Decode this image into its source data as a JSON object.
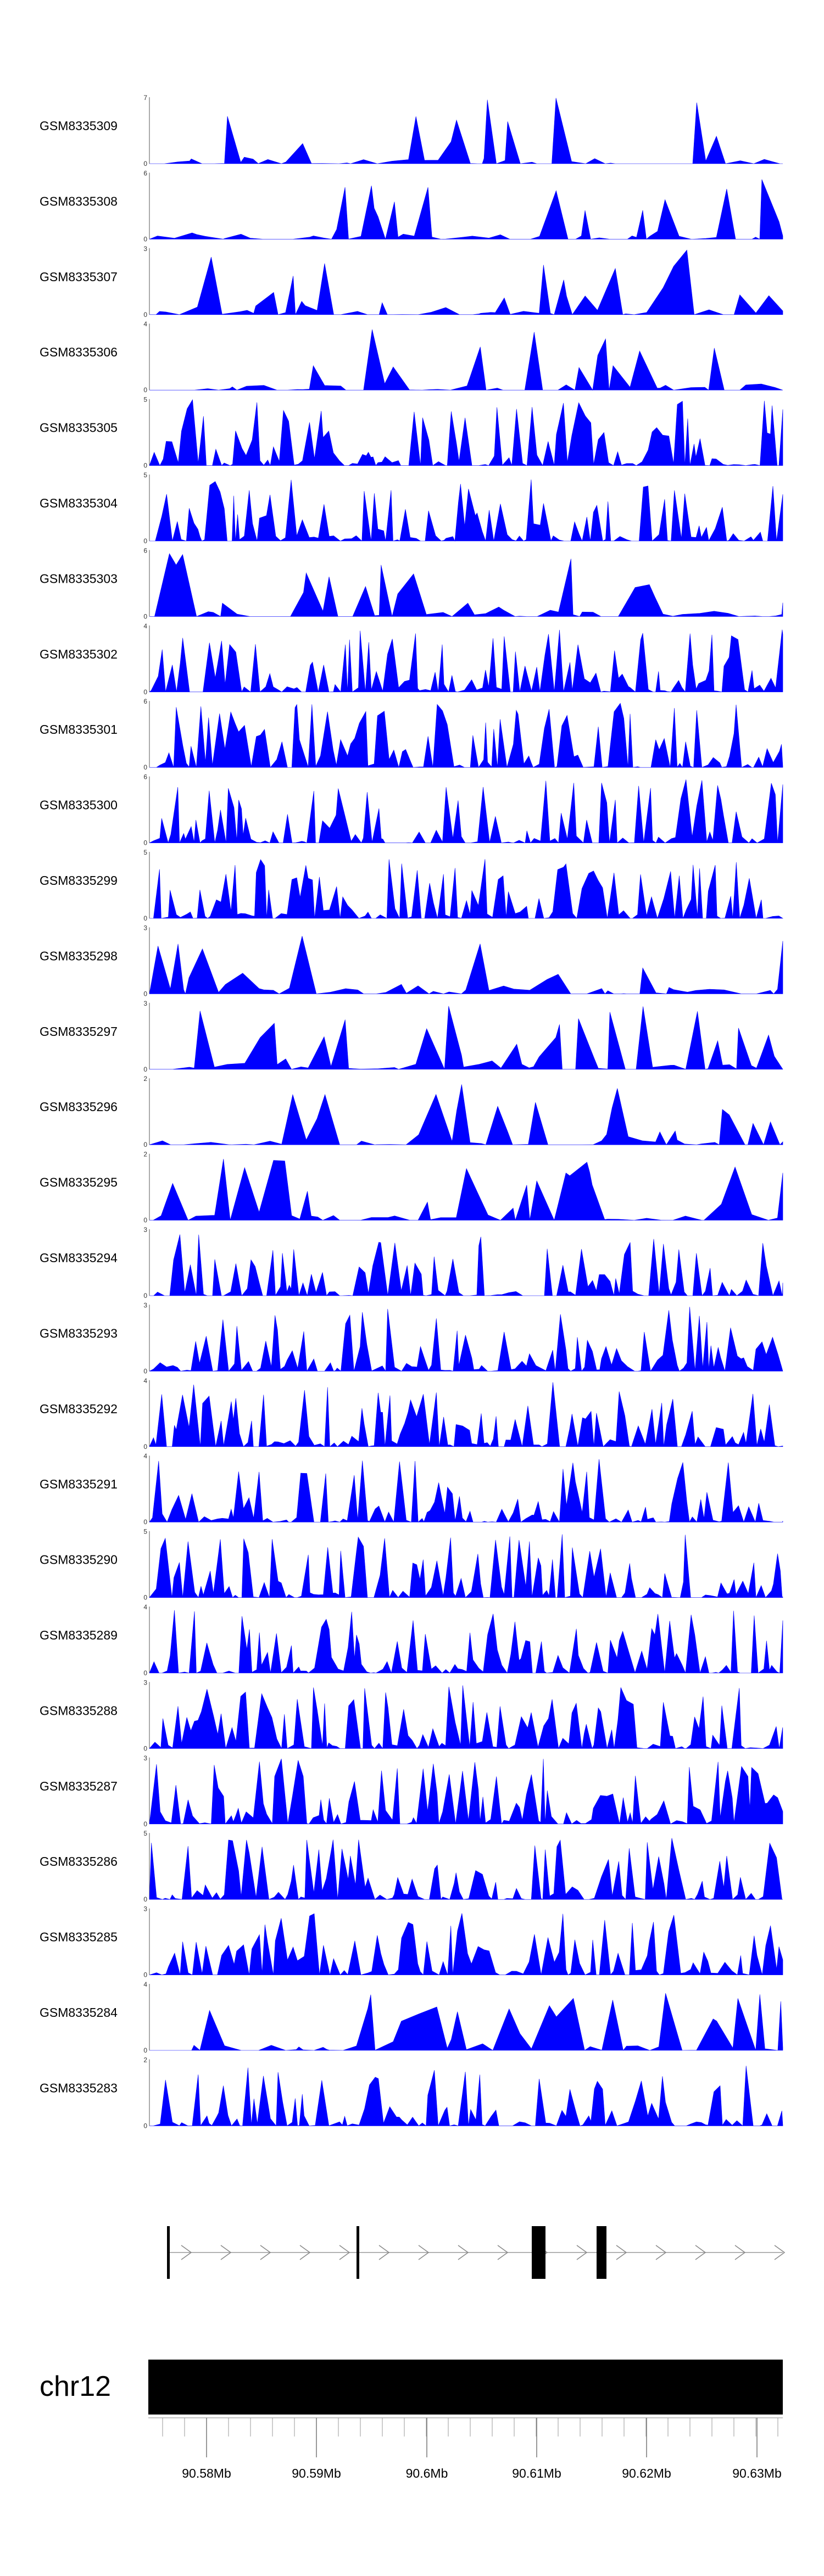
{
  "chart_data": {
    "type": "area",
    "title": "",
    "xlabel": "",
    "ylabel": "",
    "color": "#0000ff",
    "chromosome": "chr12",
    "x_ticks": [
      "90.58Mb",
      "90.59Mb",
      "90.6Mb",
      "90.61Mb",
      "90.62Mb",
      "90.63Mb"
    ],
    "tracks": [
      {
        "name": "GSM8335309",
        "ymin": 0,
        "ymax": 7,
        "seed": 309,
        "density": 0.25
      },
      {
        "name": "GSM8335308",
        "ymin": 0,
        "ymax": 6,
        "seed": 308,
        "density": 0.35
      },
      {
        "name": "GSM8335307",
        "ymin": 0,
        "ymax": 3,
        "seed": 307,
        "density": 0.4
      },
      {
        "name": "GSM8335306",
        "ymin": 0,
        "ymax": 4,
        "seed": 306,
        "density": 0.3
      },
      {
        "name": "GSM8335305",
        "ymin": 0,
        "ymax": 5,
        "seed": 305,
        "density": 0.6
      },
      {
        "name": "GSM8335304",
        "ymin": 0,
        "ymax": 5,
        "seed": 304,
        "density": 0.6
      },
      {
        "name": "GSM8335303",
        "ymin": 0,
        "ymax": 6,
        "seed": 303,
        "density": 0.45
      },
      {
        "name": "GSM8335302",
        "ymin": 0,
        "ymax": 4,
        "seed": 302,
        "density": 0.6
      },
      {
        "name": "GSM8335301",
        "ymin": 0,
        "ymax": 6,
        "seed": 301,
        "density": 0.6
      },
      {
        "name": "GSM8335300",
        "ymin": 0,
        "ymax": 6,
        "seed": 300,
        "density": 0.55
      },
      {
        "name": "GSM8335299",
        "ymin": 0,
        "ymax": 5,
        "seed": 299,
        "density": 0.6
      },
      {
        "name": "GSM8335298",
        "ymin": 0,
        "ymax": 3,
        "seed": 298,
        "density": 0.35
      },
      {
        "name": "GSM8335297",
        "ymin": 0,
        "ymax": 3,
        "seed": 297,
        "density": 0.45
      },
      {
        "name": "GSM8335296",
        "ymin": 0,
        "ymax": 2,
        "seed": 296,
        "density": 0.35
      },
      {
        "name": "GSM8335295",
        "ymin": 0,
        "ymax": 2,
        "seed": 295,
        "density": 0.5
      },
      {
        "name": "GSM8335294",
        "ymin": 0,
        "ymax": 3,
        "seed": 294,
        "density": 0.6
      },
      {
        "name": "GSM8335293",
        "ymin": 0,
        "ymax": 3,
        "seed": 293,
        "density": 0.6
      },
      {
        "name": "GSM8335292",
        "ymin": 0,
        "ymax": 4,
        "seed": 292,
        "density": 0.6
      },
      {
        "name": "GSM8335291",
        "ymin": 0,
        "ymax": 4,
        "seed": 291,
        "density": 0.6
      },
      {
        "name": "GSM8335290",
        "ymin": 0,
        "ymax": 5,
        "seed": 290,
        "density": 0.65
      },
      {
        "name": "GSM8335289",
        "ymin": 0,
        "ymax": 4,
        "seed": 289,
        "density": 0.65
      },
      {
        "name": "GSM8335288",
        "ymin": 0,
        "ymax": 3,
        "seed": 288,
        "density": 0.65
      },
      {
        "name": "GSM8335287",
        "ymin": 0,
        "ymax": 3,
        "seed": 287,
        "density": 0.7
      },
      {
        "name": "GSM8335286",
        "ymin": 0,
        "ymax": 5,
        "seed": 286,
        "density": 0.65
      },
      {
        "name": "GSM8335285",
        "ymin": 0,
        "ymax": 3,
        "seed": 285,
        "density": 0.6
      },
      {
        "name": "GSM8335284",
        "ymin": 0,
        "ymax": 4,
        "seed": 284,
        "density": 0.5
      },
      {
        "name": "GSM8335283",
        "ymin": 0,
        "ymax": 2,
        "seed": 283,
        "density": 0.6
      }
    ]
  }
}
